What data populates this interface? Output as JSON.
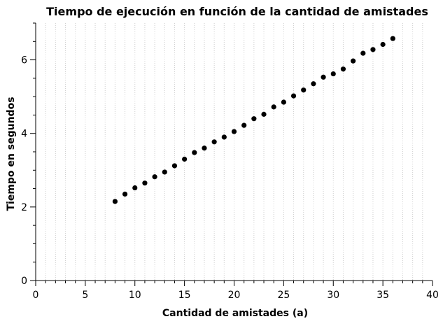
{
  "chart_data": {
    "type": "scatter",
    "title": "Tiempo de ejecución en función de la cantidad de amistades",
    "xlabel": "Cantidad de amistades (a)",
    "ylabel": "Tiempo en segundos",
    "xlim": [
      0,
      40
    ],
    "ylim": [
      0,
      7
    ],
    "x_major_ticks": [
      0,
      5,
      10,
      15,
      20,
      25,
      30,
      35,
      40
    ],
    "x_tick_labels": [
      "0",
      "5",
      "10",
      "15",
      "20",
      "25",
      "30",
      "35",
      "40"
    ],
    "y_major_ticks": [
      0,
      2,
      4,
      6
    ],
    "y_tick_labels": [
      "0",
      "2",
      "4",
      "6"
    ],
    "grid": "vertical dotted at every integer x",
    "series": [
      {
        "x": [
          8,
          9,
          10,
          11,
          12,
          13,
          14,
          15,
          16,
          17,
          18,
          19,
          20,
          21,
          22,
          23,
          24,
          25,
          26,
          27,
          28,
          29,
          30,
          31,
          32,
          33,
          34,
          35,
          36
        ],
        "y": [
          2.15,
          2.35,
          2.52,
          2.65,
          2.82,
          2.95,
          3.12,
          3.3,
          3.48,
          3.6,
          3.77,
          3.9,
          4.05,
          4.22,
          4.4,
          4.52,
          4.72,
          4.85,
          5.02,
          5.18,
          5.35,
          5.53,
          5.62,
          5.75,
          5.97,
          6.18,
          6.28,
          6.42,
          6.58
        ],
        "color": "#000000"
      }
    ]
  }
}
